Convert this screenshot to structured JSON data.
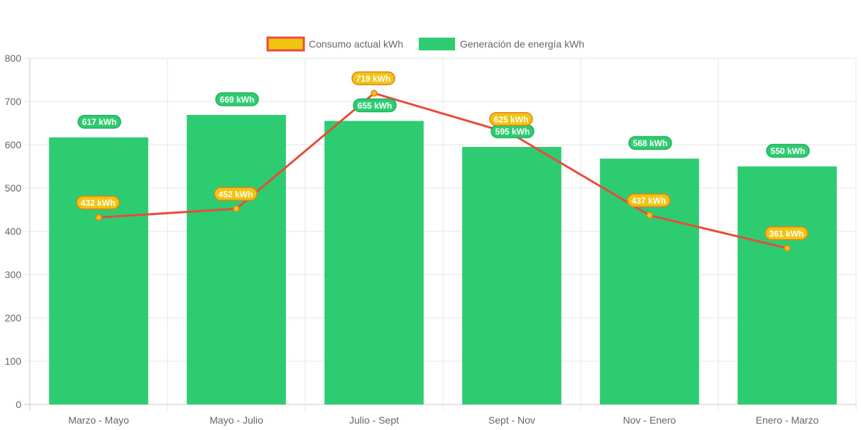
{
  "chart_data": {
    "type": "bar",
    "categories": [
      "Marzo - Mayo",
      "Mayo - Julio",
      "Julio - Sept",
      "Sept - Nov",
      "Nov - Enero",
      "Enero - Marzo"
    ],
    "series": [
      {
        "name": "Consumo actual kWh",
        "type": "line",
        "values": [
          432,
          452,
          719,
          625,
          437,
          361
        ],
        "labels": [
          "432 kWh",
          "452 kWh",
          "719 kWh",
          "625 kWh",
          "437 kWh",
          "361 kWh"
        ],
        "line_color": "#e74c3c",
        "fill_color": "#f1c40f",
        "label_border_color": "#e67e22"
      },
      {
        "name": "Generación de energía kWh",
        "type": "bar",
        "values": [
          617,
          669,
          655,
          595,
          568,
          550
        ],
        "labels": [
          "617 kWh",
          "669 kWh",
          "655 kWh",
          "595 kWh",
          "568 kWh",
          "550 kWh"
        ],
        "fill_color": "#2ecc71",
        "label_border_color": "#27ae60"
      }
    ],
    "title": "",
    "xlabel": "",
    "ylabel": "",
    "ylim": [
      0,
      800
    ],
    "yticks": [
      "0",
      "100",
      "200",
      "300",
      "400",
      "500",
      "600",
      "700",
      "800"
    ],
    "grid": true,
    "legend_position": "top"
  }
}
